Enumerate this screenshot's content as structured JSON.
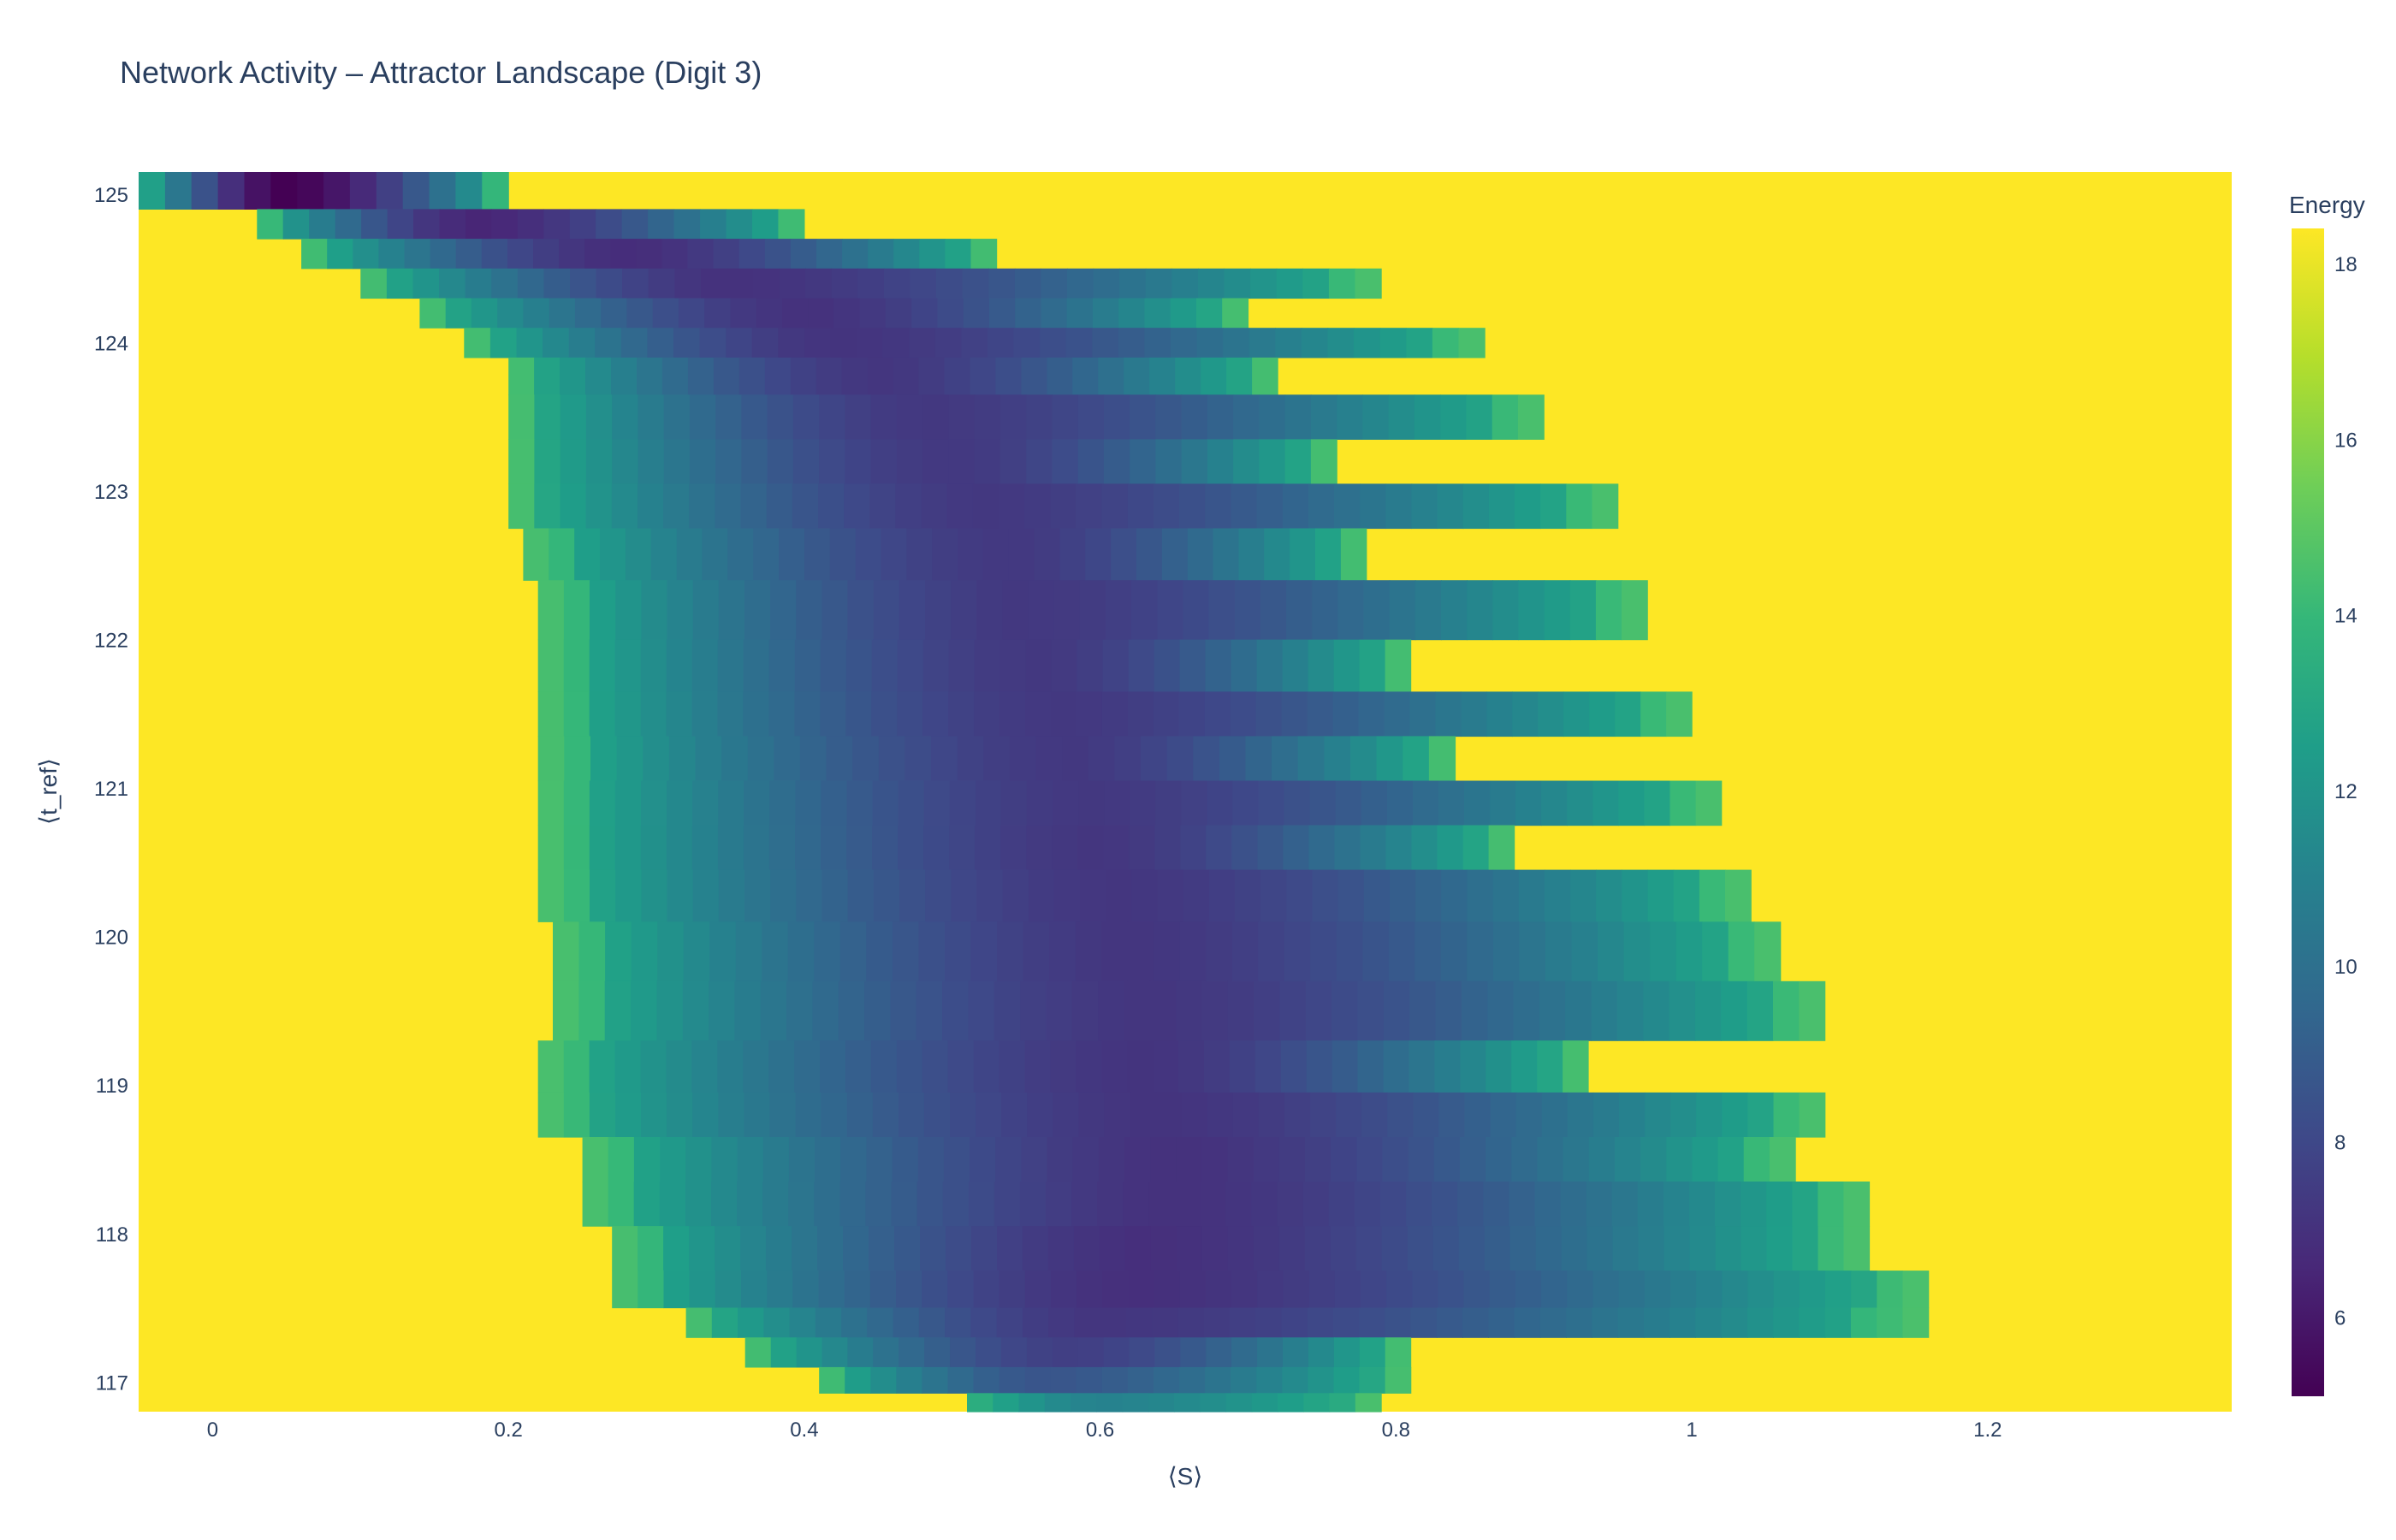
{
  "chart_data": {
    "type": "heatmap",
    "title": "Network Activity – Attractor Landscape (Digit 3)",
    "xlabel": "⟨S⟩",
    "ylabel": "⟨t_ref⟩",
    "xlim": [
      -0.05,
      1.365
    ],
    "ylim": [
      116.8,
      125.15
    ],
    "x_ticks": [
      0,
      0.2,
      0.4,
      0.6,
      0.8,
      1,
      1.2
    ],
    "y_ticks": [
      117,
      118,
      119,
      120,
      121,
      122,
      123,
      124,
      125
    ],
    "colorbar": {
      "title": "Energy",
      "range": [
        5.1,
        18.4
      ],
      "ticks": [
        6,
        8,
        10,
        12,
        14,
        16,
        18
      ],
      "colorscale": "Viridis"
    },
    "background_value": 18.4,
    "rows": [
      {
        "t_ref": 125.0,
        "s_min": -0.05,
        "s_max": 0.2,
        "min_energy": 5.1,
        "s_at_min": 0.05
      },
      {
        "t_ref": 124.8,
        "s_min": 0.03,
        "s_max": 0.4,
        "min_energy": 6.5,
        "s_at_min": 0.18
      },
      {
        "t_ref": 124.6,
        "s_min": 0.06,
        "s_max": 0.53,
        "min_energy": 6.8,
        "s_at_min": 0.28
      },
      {
        "t_ref": 124.4,
        "s_min": 0.1,
        "s_max": 0.79,
        "min_energy": 7.0,
        "s_at_min": 0.35
      },
      {
        "t_ref": 124.2,
        "s_min": 0.14,
        "s_max": 0.7,
        "min_energy": 7.0,
        "s_at_min": 0.4
      },
      {
        "t_ref": 124.0,
        "s_min": 0.17,
        "s_max": 0.86,
        "min_energy": 7.1,
        "s_at_min": 0.42
      },
      {
        "t_ref": 123.8,
        "s_min": 0.2,
        "s_max": 0.72,
        "min_energy": 7.2,
        "s_at_min": 0.45
      },
      {
        "t_ref": 123.5,
        "s_min": 0.2,
        "s_max": 0.9,
        "min_energy": 7.3,
        "s_at_min": 0.48
      },
      {
        "t_ref": 123.2,
        "s_min": 0.2,
        "s_max": 0.76,
        "min_energy": 7.3,
        "s_at_min": 0.5
      },
      {
        "t_ref": 122.9,
        "s_min": 0.2,
        "s_max": 0.95,
        "min_energy": 7.3,
        "s_at_min": 0.52
      },
      {
        "t_ref": 122.6,
        "s_min": 0.21,
        "s_max": 0.78,
        "min_energy": 7.3,
        "s_at_min": 0.54
      },
      {
        "t_ref": 122.2,
        "s_min": 0.22,
        "s_max": 0.97,
        "min_energy": 7.3,
        "s_at_min": 0.55
      },
      {
        "t_ref": 121.8,
        "s_min": 0.22,
        "s_max": 0.81,
        "min_energy": 7.3,
        "s_at_min": 0.56
      },
      {
        "t_ref": 121.5,
        "s_min": 0.22,
        "s_max": 1.0,
        "min_energy": 7.3,
        "s_at_min": 0.57
      },
      {
        "t_ref": 121.2,
        "s_min": 0.22,
        "s_max": 0.84,
        "min_energy": 7.3,
        "s_at_min": 0.58
      },
      {
        "t_ref": 120.9,
        "s_min": 0.22,
        "s_max": 1.02,
        "min_energy": 7.3,
        "s_at_min": 0.59
      },
      {
        "t_ref": 120.6,
        "s_min": 0.22,
        "s_max": 0.88,
        "min_energy": 7.2,
        "s_at_min": 0.6
      },
      {
        "t_ref": 120.3,
        "s_min": 0.22,
        "s_max": 1.04,
        "min_energy": 7.2,
        "s_at_min": 0.61
      },
      {
        "t_ref": 119.9,
        "s_min": 0.23,
        "s_max": 1.06,
        "min_energy": 7.2,
        "s_at_min": 0.62
      },
      {
        "t_ref": 119.5,
        "s_min": 0.23,
        "s_max": 1.09,
        "min_energy": 7.2,
        "s_at_min": 0.63
      },
      {
        "t_ref": 119.1,
        "s_min": 0.22,
        "s_max": 0.93,
        "min_energy": 7.1,
        "s_at_min": 0.63
      },
      {
        "t_ref": 118.8,
        "s_min": 0.22,
        "s_max": 1.09,
        "min_energy": 7.1,
        "s_at_min": 0.64
      },
      {
        "t_ref": 118.5,
        "s_min": 0.25,
        "s_max": 1.07,
        "min_energy": 7.0,
        "s_at_min": 0.65
      },
      {
        "t_ref": 118.2,
        "s_min": 0.25,
        "s_max": 1.12,
        "min_energy": 7.0,
        "s_at_min": 0.65
      },
      {
        "t_ref": 117.9,
        "s_min": 0.27,
        "s_max": 1.12,
        "min_energy": 6.9,
        "s_at_min": 0.63
      },
      {
        "t_ref": 117.6,
        "s_min": 0.27,
        "s_max": 1.16,
        "min_energy": 6.9,
        "s_at_min": 0.62
      },
      {
        "t_ref": 117.4,
        "s_min": 0.32,
        "s_max": 1.16,
        "min_energy": 7.2,
        "s_at_min": 0.6
      },
      {
        "t_ref": 117.2,
        "s_min": 0.36,
        "s_max": 0.81,
        "min_energy": 7.6,
        "s_at_min": 0.58
      },
      {
        "t_ref": 117.0,
        "s_min": 0.41,
        "s_max": 0.81,
        "min_energy": 8.6,
        "s_at_min": 0.56
      },
      {
        "t_ref": 116.85,
        "s_min": 0.51,
        "s_max": 0.79,
        "min_energy": 11.0,
        "s_at_min": 0.6
      }
    ]
  }
}
